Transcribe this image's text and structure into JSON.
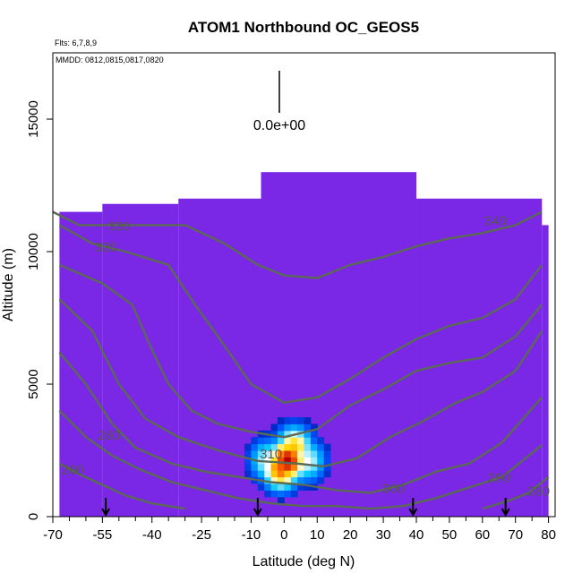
{
  "chart_data": {
    "type": "heatmap",
    "title": "ATOM1 Northbound OC_GEOS5",
    "subtitle_flights": "Flts: 6,7,8,9",
    "subtitle_dates": "MMDD: 0812,0815,0817,0820",
    "xlabel": "Latitude (deg N)",
    "ylabel": "Altitude (m)",
    "xlim": [
      -70,
      82
    ],
    "ylim": [
      0,
      17500
    ],
    "x_ticks": [
      -70,
      -55,
      -40,
      -25,
      -10,
      0,
      10,
      20,
      30,
      40,
      50,
      60,
      70,
      80
    ],
    "y_ticks": [
      0,
      5000,
      10000,
      15000
    ],
    "colorscale_value_label": "0.0e+00",
    "background_color": "#7b28e6",
    "colormap": [
      "#000080",
      "#0050ff",
      "#00c8ff",
      "#ffffff",
      "#ffe000",
      "#ff6000",
      "#b00000"
    ],
    "hot_spots": [
      {
        "lat": 0,
        "alt": 2000,
        "intensity": 1.0
      },
      {
        "lat": -2,
        "alt": 1700,
        "intensity": 0.85
      },
      {
        "lat": 2,
        "alt": 2500,
        "intensity": 0.7
      },
      {
        "lat": -6,
        "alt": 2000,
        "intensity": 0.5
      },
      {
        "lat": 6,
        "alt": 2000,
        "intensity": 0.5
      }
    ],
    "flight_coverage": [
      {
        "lat_from": -68,
        "lat_to": -55,
        "alt_top": 11500
      },
      {
        "lat_from": -55,
        "lat_to": -32,
        "alt_top": 11800
      },
      {
        "lat_from": -32,
        "lat_to": -7,
        "alt_top": 12000
      },
      {
        "lat_from": -7,
        "lat_to": 40,
        "alt_top": 13000
      },
      {
        "lat_from": 40,
        "lat_to": 78,
        "alt_top": 12000
      },
      {
        "lat_from": 78,
        "lat_to": 80,
        "alt_top": 11000
      }
    ],
    "contour_labels": [
      {
        "text": "330",
        "lat": -50,
        "alt": 10800
      },
      {
        "text": "320",
        "lat": -54,
        "alt": 10000
      },
      {
        "text": "340",
        "lat": 64,
        "alt": 11000
      },
      {
        "text": "280",
        "lat": -53,
        "alt": 2900
      },
      {
        "text": "280",
        "lat": -64,
        "alt": 1600
      },
      {
        "text": "310",
        "lat": -4,
        "alt": 2200
      },
      {
        "text": "300",
        "lat": 33,
        "alt": 900
      },
      {
        "text": "290",
        "lat": 65,
        "alt": 1300
      },
      {
        "text": "280",
        "lat": 77,
        "alt": 800
      }
    ],
    "isentropes": [
      {
        "level": "340",
        "points": [
          [
            -70,
            11500
          ],
          [
            -62,
            11000
          ],
          [
            -48,
            11000
          ],
          [
            -30,
            11000
          ],
          [
            -18,
            10300
          ],
          [
            -8,
            9500
          ],
          [
            0,
            9100
          ],
          [
            10,
            9000
          ],
          [
            20,
            9500
          ],
          [
            30,
            9800
          ],
          [
            40,
            10200
          ],
          [
            50,
            10500
          ],
          [
            60,
            10700
          ],
          [
            70,
            11000
          ],
          [
            78,
            11500
          ]
        ]
      },
      {
        "level": "330",
        "points": [
          [
            -68,
            11000
          ],
          [
            -58,
            10300
          ],
          [
            -48,
            10000
          ],
          [
            -35,
            9500
          ],
          [
            -27,
            8000
          ],
          [
            -20,
            6800
          ],
          [
            -10,
            5000
          ],
          [
            0,
            4300
          ],
          [
            10,
            4500
          ],
          [
            20,
            5200
          ],
          [
            30,
            6000
          ],
          [
            40,
            6700
          ],
          [
            50,
            7200
          ],
          [
            60,
            7500
          ],
          [
            70,
            8200
          ],
          [
            78,
            9500
          ]
        ]
      },
      {
        "level": "320",
        "points": [
          [
            -68,
            9500
          ],
          [
            -55,
            8800
          ],
          [
            -46,
            8000
          ],
          [
            -40,
            6300
          ],
          [
            -35,
            5000
          ],
          [
            -28,
            4000
          ],
          [
            -20,
            3500
          ],
          [
            -10,
            3200
          ],
          [
            0,
            3000
          ],
          [
            10,
            3300
          ],
          [
            20,
            4200
          ],
          [
            30,
            4800
          ],
          [
            40,
            5500
          ],
          [
            50,
            5800
          ],
          [
            60,
            6000
          ],
          [
            70,
            6800
          ],
          [
            78,
            8000
          ]
        ]
      },
      {
        "level": "310",
        "points": [
          [
            -68,
            8200
          ],
          [
            -58,
            7000
          ],
          [
            -50,
            5000
          ],
          [
            -42,
            3700
          ],
          [
            -32,
            3000
          ],
          [
            -20,
            2500
          ],
          [
            -8,
            2100
          ],
          [
            4,
            2000
          ],
          [
            12,
            1900
          ],
          [
            22,
            2200
          ],
          [
            32,
            3000
          ],
          [
            42,
            3600
          ],
          [
            52,
            4300
          ],
          [
            60,
            4700
          ],
          [
            70,
            5500
          ],
          [
            78,
            7000
          ]
        ]
      },
      {
        "level": "300",
        "points": [
          [
            -68,
            6200
          ],
          [
            -60,
            5000
          ],
          [
            -52,
            3500
          ],
          [
            -45,
            2600
          ],
          [
            -34,
            2000
          ],
          [
            -24,
            1700
          ],
          [
            -14,
            1500
          ],
          [
            -4,
            1300
          ],
          [
            6,
            1200
          ],
          [
            16,
            1000
          ],
          [
            26,
            900
          ],
          [
            36,
            1200
          ],
          [
            46,
            1700
          ],
          [
            56,
            2000
          ],
          [
            66,
            2800
          ],
          [
            78,
            4500
          ]
        ]
      },
      {
        "level": "290",
        "points": [
          [
            -68,
            4000
          ],
          [
            -60,
            3000
          ],
          [
            -52,
            2300
          ],
          [
            -44,
            1800
          ],
          [
            -34,
            1300
          ],
          [
            -24,
            1000
          ],
          [
            -14,
            700
          ],
          [
            -4,
            500
          ],
          [
            6,
            400
          ],
          [
            16,
            400
          ],
          [
            26,
            300
          ],
          [
            36,
            400
          ],
          [
            46,
            700
          ],
          [
            56,
            1100
          ],
          [
            66,
            1500
          ],
          [
            78,
            2700
          ]
        ]
      },
      {
        "level": "280",
        "points": [
          [
            -68,
            2000
          ],
          [
            -62,
            1600
          ],
          [
            -55,
            1200
          ],
          [
            -48,
            800
          ],
          [
            -40,
            500
          ],
          [
            -30,
            300
          ]
        ]
      },
      {
        "level": "280b",
        "points": [
          [
            60,
            300
          ],
          [
            68,
            600
          ],
          [
            74,
            900
          ],
          [
            80,
            1500
          ]
        ]
      }
    ],
    "flight_markers_lat": [
      -54,
      -8,
      39,
      67
    ]
  }
}
